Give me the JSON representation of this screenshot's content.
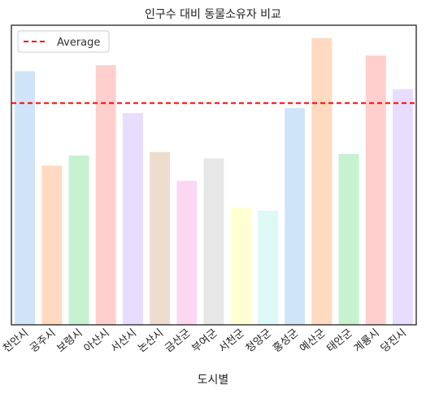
{
  "chart_data": {
    "type": "bar",
    "title": "인구수 대비 동물소유자 비교",
    "xlabel": "도시별",
    "ylabel": "",
    "categories": [
      "천안시",
      "공주시",
      "보령시",
      "아산시",
      "서산시",
      "논산시",
      "금산군",
      "부여군",
      "서천군",
      "청양군",
      "홍성군",
      "예산군",
      "태안군",
      "계룡시",
      "당진시"
    ],
    "values": [
      0.848,
      0.533,
      0.566,
      0.868,
      0.708,
      0.578,
      0.482,
      0.557,
      0.393,
      0.382,
      0.725,
      0.958,
      0.572,
      0.9,
      0.788
    ],
    "ylim": [
      0,
      1.0
    ],
    "average": 0.74,
    "average_label": "Average",
    "grid": false,
    "legend_position": "top-left",
    "colors": [
      "#a1c9f4",
      "#ffb482",
      "#8de5a1",
      "#ff9f9b",
      "#d0bbff",
      "#debb9b",
      "#fab0e4",
      "#cfcfcf",
      "#fffea3",
      "#b9f2f0",
      "#a1c9f4",
      "#ffb482",
      "#8de5a1",
      "#ff9f9b",
      "#d0bbff"
    ],
    "average_color": "#ff0000"
  }
}
